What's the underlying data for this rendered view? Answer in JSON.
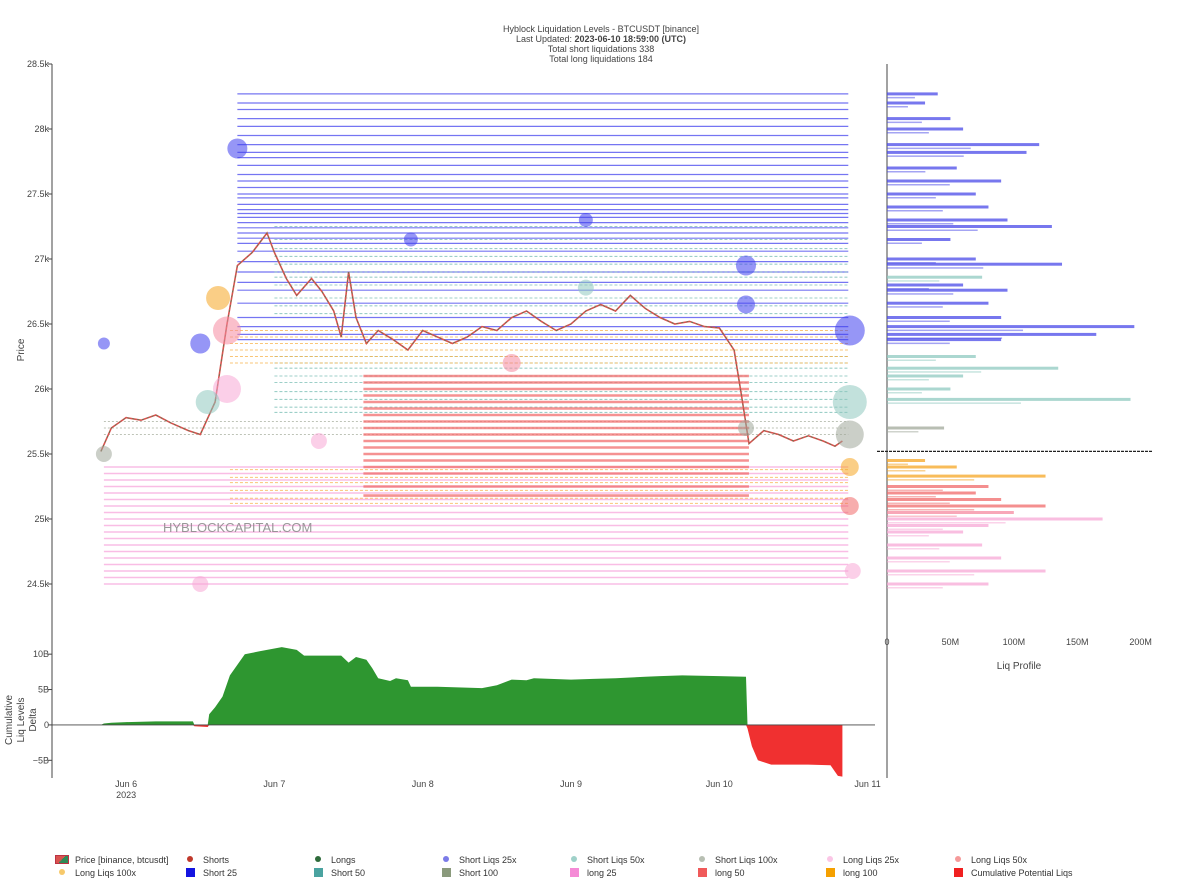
{
  "header": {
    "title": "Hyblock Liquidation Levels - BTCUSDT [binance]",
    "updated_prefix": "Last Updated: ",
    "updated_value": "2023-06-10 18:59:00 (UTC)",
    "short_total": "Total short liquidations 338",
    "long_total": "Total long liquidations 184"
  },
  "watermark": "HYBLOCKCAPITAL.COM",
  "chart_data": [
    {
      "type": "line",
      "name": "price",
      "ylabel": "Price",
      "ylim": [
        24300,
        28500
      ],
      "y_ticks": [
        {
          "v": 28500,
          "label": "28.5k"
        },
        {
          "v": 28000,
          "label": "28k"
        },
        {
          "v": 27500,
          "label": "27.5k"
        },
        {
          "v": 27000,
          "label": "27k"
        },
        {
          "v": 26500,
          "label": "26.5k"
        },
        {
          "v": 26000,
          "label": "26k"
        },
        {
          "v": 25500,
          "label": "25.5k"
        },
        {
          "v": 25000,
          "label": "25k"
        },
        {
          "v": 24500,
          "label": "24.5k"
        }
      ],
      "x_ticks": [
        {
          "v": 6,
          "label": "Jun 6",
          "sub": "2023"
        },
        {
          "v": 7,
          "label": "Jun 7",
          "sub": ""
        },
        {
          "v": 8,
          "label": "Jun 8",
          "sub": ""
        },
        {
          "v": 9,
          "label": "Jun 9",
          "sub": ""
        },
        {
          "v": 10,
          "label": "Jun 10",
          "sub": ""
        },
        {
          "v": 11,
          "label": "Jun 11",
          "sub": ""
        }
      ],
      "xlim": [
        5.5,
        11.05
      ],
      "price": [
        [
          5.83,
          25520
        ],
        [
          5.9,
          25700
        ],
        [
          6.0,
          25780
        ],
        [
          6.1,
          25760
        ],
        [
          6.2,
          25800
        ],
        [
          6.3,
          25740
        ],
        [
          6.42,
          25680
        ],
        [
          6.5,
          25650
        ],
        [
          6.6,
          25900
        ],
        [
          6.68,
          26500
        ],
        [
          6.75,
          26950
        ],
        [
          6.85,
          27050
        ],
        [
          6.95,
          27200
        ],
        [
          7.0,
          27050
        ],
        [
          7.08,
          26850
        ],
        [
          7.15,
          26720
        ],
        [
          7.25,
          26850
        ],
        [
          7.32,
          26750
        ],
        [
          7.4,
          26600
        ],
        [
          7.45,
          26400
        ],
        [
          7.5,
          26900
        ],
        [
          7.55,
          26550
        ],
        [
          7.62,
          26350
        ],
        [
          7.7,
          26450
        ],
        [
          7.8,
          26380
        ],
        [
          7.9,
          26300
        ],
        [
          8.0,
          26450
        ],
        [
          8.1,
          26400
        ],
        [
          8.2,
          26350
        ],
        [
          8.3,
          26400
        ],
        [
          8.4,
          26480
        ],
        [
          8.5,
          26450
        ],
        [
          8.6,
          26550
        ],
        [
          8.7,
          26600
        ],
        [
          8.8,
          26520
        ],
        [
          8.9,
          26450
        ],
        [
          9.0,
          26500
        ],
        [
          9.1,
          26600
        ],
        [
          9.2,
          26650
        ],
        [
          9.3,
          26600
        ],
        [
          9.4,
          26720
        ],
        [
          9.5,
          26620
        ],
        [
          9.6,
          26550
        ],
        [
          9.7,
          26500
        ],
        [
          9.8,
          26520
        ],
        [
          9.9,
          26480
        ],
        [
          10.0,
          26470
        ],
        [
          10.1,
          26300
        ],
        [
          10.15,
          25950
        ],
        [
          10.2,
          25580
        ],
        [
          10.3,
          25680
        ],
        [
          10.4,
          25650
        ],
        [
          10.5,
          25600
        ],
        [
          10.6,
          25640
        ],
        [
          10.7,
          25600
        ],
        [
          10.78,
          25560
        ],
        [
          10.83,
          25600
        ]
      ],
      "short_levels_25x": [
        28270,
        28200,
        28150,
        28080,
        28020,
        27950,
        27880,
        27820,
        27780,
        27720,
        27650,
        27600,
        27550,
        27500,
        27470,
        27420,
        27380,
        27350,
        27320,
        27280,
        27240,
        27200,
        27160,
        27120,
        27060,
        26980,
        26900,
        26820,
        26760,
        26660,
        26550,
        26480,
        26420,
        26380
      ],
      "short_levels_50x": [
        27250,
        27150,
        27080,
        27020,
        26960,
        26900,
        26860,
        26800,
        26700,
        26640,
        26580,
        26250,
        26200,
        26160,
        26100,
        26050,
        25980,
        25920,
        25860,
        25820
      ],
      "short_levels_100x": [
        25750,
        25700,
        25650
      ],
      "long_levels_25x": [
        25400,
        25350,
        25300,
        25250,
        25200,
        25150,
        25100,
        25050,
        25000,
        24950,
        24900,
        24850,
        24800,
        24750,
        24700,
        24650,
        24600,
        24550,
        24500
      ],
      "long_levels_50x": [
        26100,
        26050,
        26000,
        25950,
        25900,
        25850,
        25800,
        25750,
        25700,
        25650,
        25600,
        25550,
        25500,
        25450,
        25400,
        25350,
        25250,
        25180
      ],
      "long_levels_100x": [
        26450,
        26400,
        26350,
        26300,
        26250,
        26200,
        25380,
        25320,
        25280,
        25220,
        25160,
        25120
      ],
      "bubbles": [
        {
          "x": 10.88,
          "y": 26450,
          "r": 15,
          "c": "#4040ee"
        },
        {
          "x": 10.88,
          "y": 25900,
          "r": 17,
          "c": "#8fc9c0"
        },
        {
          "x": 10.88,
          "y": 25650,
          "r": 14,
          "c": "#a0a89a"
        },
        {
          "x": 10.88,
          "y": 25100,
          "r": 9,
          "c": "#f06a6a"
        },
        {
          "x": 10.88,
          "y": 25400,
          "r": 9,
          "c": "#f5a623"
        },
        {
          "x": 10.18,
          "y": 26950,
          "r": 10,
          "c": "#4040ee"
        },
        {
          "x": 10.18,
          "y": 26650,
          "r": 9,
          "c": "#4040ee"
        },
        {
          "x": 10.18,
          "y": 25700,
          "r": 8,
          "c": "#a0a89a"
        },
        {
          "x": 6.68,
          "y": 26450,
          "r": 14,
          "c": "#f58aa0"
        },
        {
          "x": 6.68,
          "y": 26000,
          "r": 14,
          "c": "#f7a8d6"
        },
        {
          "x": 6.62,
          "y": 26700,
          "r": 12,
          "c": "#f5a623"
        },
        {
          "x": 6.55,
          "y": 25900,
          "r": 12,
          "c": "#8fc9c0"
        },
        {
          "x": 6.5,
          "y": 26350,
          "r": 10,
          "c": "#4040ee"
        },
        {
          "x": 6.75,
          "y": 27850,
          "r": 10,
          "c": "#4040ee"
        },
        {
          "x": 7.92,
          "y": 27150,
          "r": 7,
          "c": "#4040ee"
        },
        {
          "x": 9.1,
          "y": 27300,
          "r": 7,
          "c": "#4040ee"
        },
        {
          "x": 9.1,
          "y": 26780,
          "r": 8,
          "c": "#8fc9c0"
        },
        {
          "x": 8.6,
          "y": 26200,
          "r": 9,
          "c": "#f58aa0"
        },
        {
          "x": 5.85,
          "y": 25500,
          "r": 8,
          "c": "#a0a89a"
        },
        {
          "x": 5.85,
          "y": 26350,
          "r": 6,
          "c": "#4040ee"
        },
        {
          "x": 6.5,
          "y": 24500,
          "r": 8,
          "c": "#f7a8d6"
        },
        {
          "x": 10.9,
          "y": 24600,
          "r": 8,
          "c": "#f7a8d6"
        },
        {
          "x": 7.3,
          "y": 25600,
          "r": 8,
          "c": "#f7a8d6"
        }
      ]
    },
    {
      "type": "area",
      "name": "cumulative",
      "ylabel": "Cumulative Liq Levels Delta",
      "ylim": [
        -7.5,
        12
      ],
      "y_ticks": [
        {
          "v": 10,
          "label": "10B"
        },
        {
          "v": 5,
          "label": "5B"
        },
        {
          "v": 0,
          "label": "0"
        },
        {
          "v": -5,
          "label": "−5B"
        }
      ],
      "series": [
        [
          5.83,
          0.0
        ],
        [
          5.85,
          0.2
        ],
        [
          5.9,
          0.3
        ],
        [
          6.0,
          0.4
        ],
        [
          6.2,
          0.5
        ],
        [
          6.45,
          0.5
        ],
        [
          6.46,
          -0.2
        ],
        [
          6.55,
          -0.3
        ],
        [
          6.56,
          1.5
        ],
        [
          6.6,
          2.5
        ],
        [
          6.65,
          4.0
        ],
        [
          6.7,
          7.0
        ],
        [
          6.75,
          8.5
        ],
        [
          6.8,
          10.0
        ],
        [
          6.9,
          10.4
        ],
        [
          7.0,
          10.8
        ],
        [
          7.05,
          11.0
        ],
        [
          7.15,
          10.6
        ],
        [
          7.2,
          9.8
        ],
        [
          7.45,
          9.8
        ],
        [
          7.5,
          8.8
        ],
        [
          7.55,
          9.6
        ],
        [
          7.62,
          9.2
        ],
        [
          7.66,
          8.0
        ],
        [
          7.7,
          6.6
        ],
        [
          7.78,
          6.2
        ],
        [
          7.82,
          6.6
        ],
        [
          7.9,
          6.3
        ],
        [
          7.92,
          5.4
        ],
        [
          8.1,
          5.4
        ],
        [
          8.4,
          5.2
        ],
        [
          8.5,
          5.6
        ],
        [
          8.6,
          6.4
        ],
        [
          8.7,
          6.3
        ],
        [
          8.75,
          6.6
        ],
        [
          9.0,
          6.4
        ],
        [
          9.15,
          6.5
        ],
        [
          9.3,
          6.6
        ],
        [
          9.5,
          6.8
        ],
        [
          9.6,
          6.9
        ],
        [
          9.75,
          7.0
        ],
        [
          10.0,
          6.9
        ],
        [
          10.18,
          6.8
        ],
        [
          10.19,
          -0.5
        ],
        [
          10.22,
          -3.0
        ],
        [
          10.26,
          -5.0
        ],
        [
          10.35,
          -5.6
        ],
        [
          10.6,
          -5.6
        ],
        [
          10.75,
          -5.7
        ],
        [
          10.8,
          -7.2
        ],
        [
          10.83,
          -7.3
        ]
      ]
    },
    {
      "type": "bar",
      "name": "liq_profile",
      "xlabel": "Liq Profile",
      "x_ticks": [
        {
          "v": 0,
          "label": "0"
        },
        {
          "v": 50,
          "label": "50M"
        },
        {
          "v": 100,
          "label": "100M"
        },
        {
          "v": 150,
          "label": "150M"
        },
        {
          "v": 200,
          "label": "200M"
        }
      ],
      "xlim": [
        0,
        205
      ],
      "current_price": 25520,
      "bars": [
        {
          "y": 28270,
          "v": 40,
          "c": "#4a4ae8"
        },
        {
          "y": 28200,
          "v": 30,
          "c": "#4a4ae8"
        },
        {
          "y": 28080,
          "v": 50,
          "c": "#4a4ae8"
        },
        {
          "y": 28000,
          "v": 60,
          "c": "#4a4ae8"
        },
        {
          "y": 27880,
          "v": 120,
          "c": "#4a4ae8"
        },
        {
          "y": 27820,
          "v": 110,
          "c": "#4a4ae8"
        },
        {
          "y": 27700,
          "v": 55,
          "c": "#4a4ae8"
        },
        {
          "y": 27600,
          "v": 90,
          "c": "#4a4ae8"
        },
        {
          "y": 27500,
          "v": 70,
          "c": "#4a4ae8"
        },
        {
          "y": 27400,
          "v": 80,
          "c": "#4a4ae8"
        },
        {
          "y": 27300,
          "v": 95,
          "c": "#4a4ae8"
        },
        {
          "y": 27250,
          "v": 130,
          "c": "#4a4ae8"
        },
        {
          "y": 27150,
          "v": 50,
          "c": "#4a4ae8"
        },
        {
          "y": 27000,
          "v": 70,
          "c": "#4a4ae8"
        },
        {
          "y": 26960,
          "v": 138,
          "c": "#4a4ae8"
        },
        {
          "y": 26860,
          "v": 75,
          "c": "#8fc9c0"
        },
        {
          "y": 26800,
          "v": 60,
          "c": "#4a4ae8"
        },
        {
          "y": 26760,
          "v": 95,
          "c": "#4a4ae8"
        },
        {
          "y": 26660,
          "v": 80,
          "c": "#4a4ae8"
        },
        {
          "y": 26550,
          "v": 90,
          "c": "#4a4ae8"
        },
        {
          "y": 26480,
          "v": 195,
          "c": "#4a4ae8"
        },
        {
          "y": 26420,
          "v": 165,
          "c": "#4a4ae8"
        },
        {
          "y": 26380,
          "v": 90,
          "c": "#4a4ae8"
        },
        {
          "y": 26250,
          "v": 70,
          "c": "#8fc9c0"
        },
        {
          "y": 26160,
          "v": 135,
          "c": "#8fc9c0"
        },
        {
          "y": 26100,
          "v": 60,
          "c": "#8fc9c0"
        },
        {
          "y": 26000,
          "v": 50,
          "c": "#8fc9c0"
        },
        {
          "y": 25920,
          "v": 192,
          "c": "#8fc9c0"
        },
        {
          "y": 25700,
          "v": 45,
          "c": "#a0a89a"
        },
        {
          "y": 25450,
          "v": 30,
          "c": "#f5a623"
        },
        {
          "y": 25400,
          "v": 55,
          "c": "#f5a623"
        },
        {
          "y": 25330,
          "v": 125,
          "c": "#f5a623"
        },
        {
          "y": 25250,
          "v": 80,
          "c": "#f06a6a"
        },
        {
          "y": 25200,
          "v": 70,
          "c": "#f06a6a"
        },
        {
          "y": 25150,
          "v": 90,
          "c": "#f06a6a"
        },
        {
          "y": 25100,
          "v": 125,
          "c": "#f06a6a"
        },
        {
          "y": 25050,
          "v": 100,
          "c": "#f58aa0"
        },
        {
          "y": 25000,
          "v": 170,
          "c": "#f7a8d6"
        },
        {
          "y": 24950,
          "v": 80,
          "c": "#f7a8d6"
        },
        {
          "y": 24900,
          "v": 60,
          "c": "#f7a8d6"
        },
        {
          "y": 24800,
          "v": 75,
          "c": "#f7a8d6"
        },
        {
          "y": 24700,
          "v": 90,
          "c": "#f7a8d6"
        },
        {
          "y": 24600,
          "v": 125,
          "c": "#f7a8d6"
        },
        {
          "y": 24500,
          "v": 80,
          "c": "#f7a8d6"
        }
      ]
    }
  ],
  "colors": {
    "short25": "#2b2be0",
    "short50": "#5fb0a8",
    "short100": "#8c9c80",
    "long25": "#f78fd8",
    "long50": "#f05a5a",
    "long100": "#f5a623",
    "cum_pos": "#2e9630",
    "cum_neg": "#f03030",
    "price_up": "#2e8b57",
    "price_down": "#d9534f"
  },
  "legend": [
    {
      "label": "Price [binance, btcusdt]",
      "kind": "price",
      "color": "#d9534f"
    },
    {
      "label": "Shorts",
      "kind": "dot",
      "color": "#c0392b"
    },
    {
      "label": "Longs",
      "kind": "dot",
      "color": "#2e6b3a"
    },
    {
      "label": "Short Liqs 25x",
      "kind": "dot",
      "color": "#7b7be8"
    },
    {
      "label": "Short Liqs 50x",
      "kind": "dot",
      "color": "#9fd1c9"
    },
    {
      "label": "Short Liqs 100x",
      "kind": "dot",
      "color": "#b8bfb3"
    },
    {
      "label": "Long Liqs 25x",
      "kind": "dot",
      "color": "#fbc6e6"
    },
    {
      "label": "Long Liqs 50x",
      "kind": "dot",
      "color": "#f59a9a"
    },
    {
      "label": "Long Liqs 100x",
      "kind": "dot",
      "color": "#f7c96b"
    },
    {
      "label": "Short 25",
      "kind": "sq",
      "color": "#1414e0"
    },
    {
      "label": "Short 50",
      "kind": "sq",
      "color": "#4aa3a0"
    },
    {
      "label": "Short 100",
      "kind": "sq",
      "color": "#8a9a7c"
    },
    {
      "label": "long 25",
      "kind": "sq",
      "color": "#f58ad6"
    },
    {
      "label": "long 50",
      "kind": "sq",
      "color": "#f05a5a"
    },
    {
      "label": "long 100",
      "kind": "sq",
      "color": "#f5a000"
    },
    {
      "label": "Cumulative Potential Liqs",
      "kind": "sq",
      "color": "#f02020"
    }
  ]
}
